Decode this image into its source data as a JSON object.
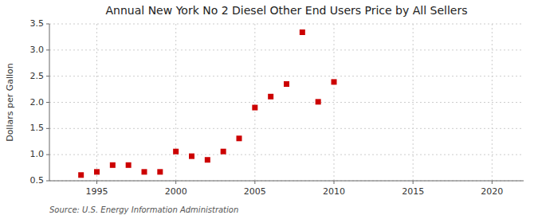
{
  "chart_data": {
    "type": "scatter",
    "title": "Annual New York No 2 Diesel Other End Users Price by All Sellers",
    "ylabel": "Dollars per Gallon",
    "annotations": [
      "Source: U.S. Energy Information Administration"
    ],
    "x": [
      1994,
      1995,
      1996,
      1997,
      1998,
      1999,
      2000,
      2001,
      2002,
      2003,
      2004,
      2005,
      2006,
      2007,
      2008,
      2009,
      2010
    ],
    "values": [
      0.61,
      0.67,
      0.8,
      0.8,
      0.67,
      0.67,
      1.06,
      0.97,
      0.9,
      1.06,
      1.31,
      1.9,
      2.11,
      2.35,
      3.34,
      2.01,
      2.39
    ],
    "color": "#cc0000",
    "marker": "square",
    "xlim": [
      1992,
      2022
    ],
    "ylim": [
      0.5,
      3.5
    ],
    "xticks": [
      1995,
      2000,
      2005,
      2010,
      2015,
      2020
    ],
    "yticks": [
      0.5,
      {
        "value": 1,
        "label": "1.0"
      },
      1.5,
      {
        "value": 2,
        "label": "2.0"
      },
      2.5,
      {
        "value": 3,
        "label": "3.0"
      },
      3.5
    ],
    "grid": true
  }
}
